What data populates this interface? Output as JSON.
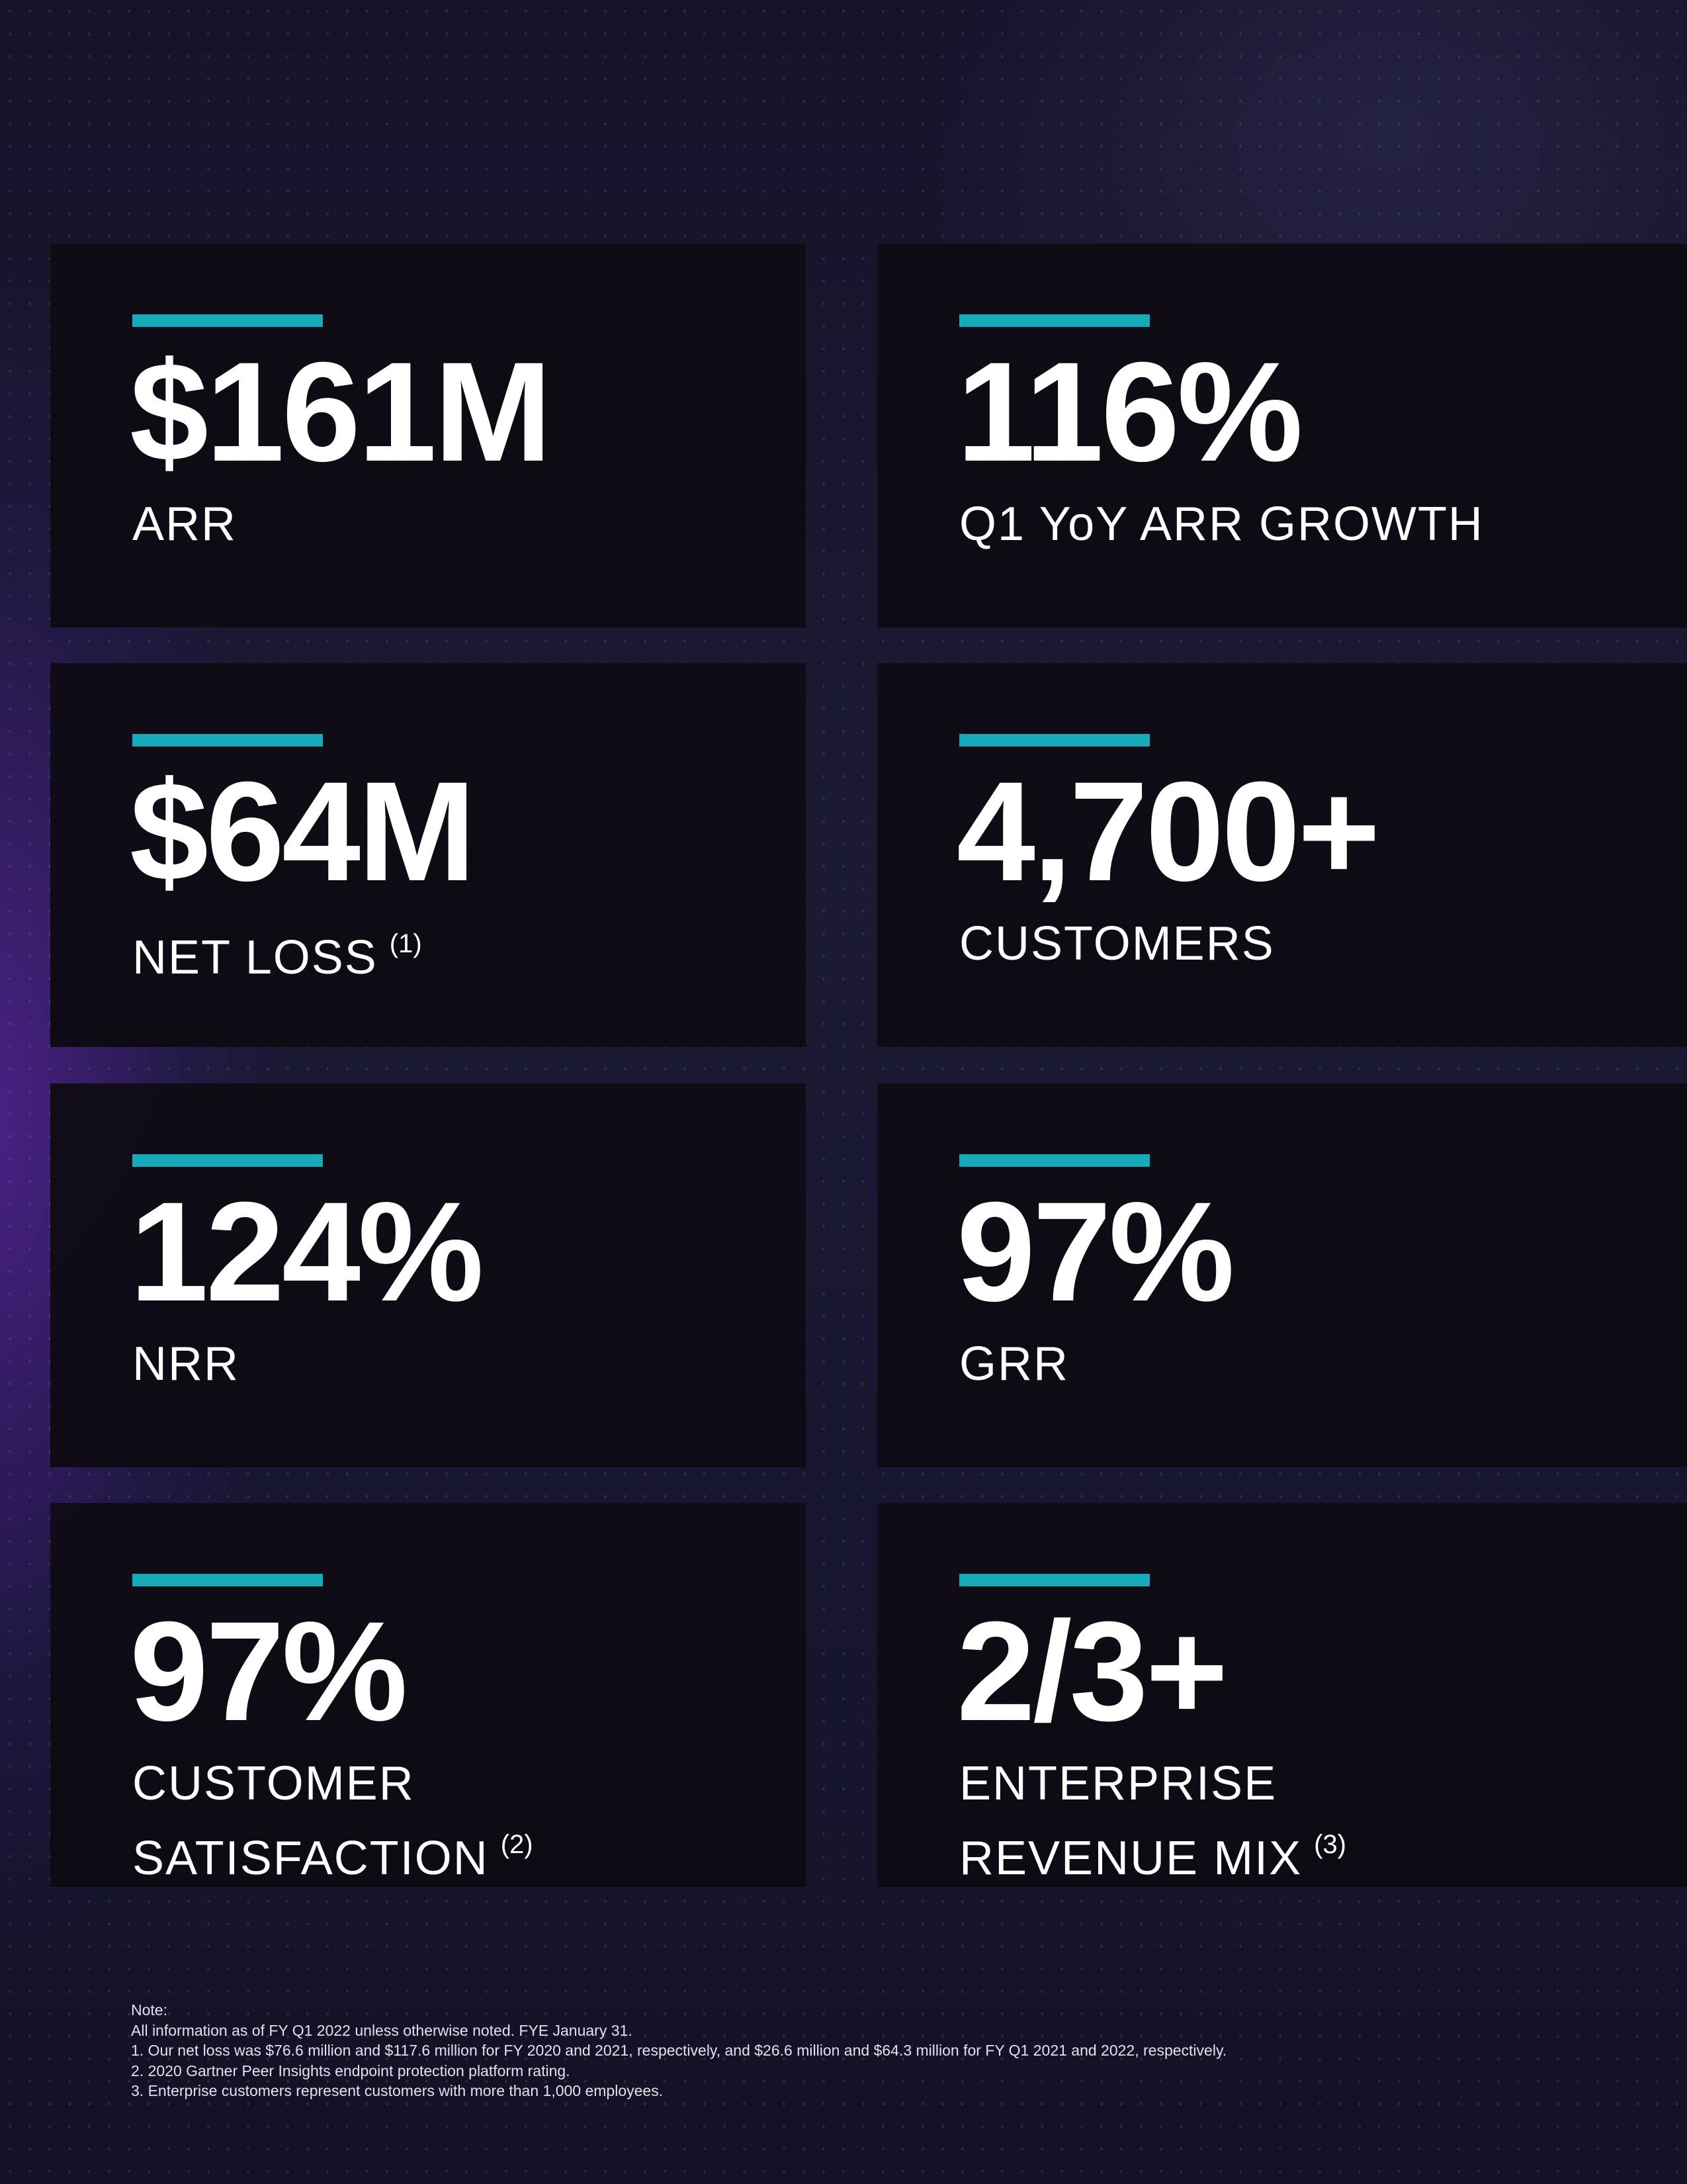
{
  "cards": [
    {
      "value": "$161M",
      "label_lines": [
        "ARR"
      ],
      "sup": ""
    },
    {
      "value": "116%",
      "label_lines": [
        "Q1 YoY ARR GROWTH"
      ],
      "sup": ""
    },
    {
      "value": "$64M",
      "label_lines": [
        "NET LOSS"
      ],
      "sup": "(1)"
    },
    {
      "value": "4,700+",
      "label_lines": [
        "CUSTOMERS"
      ],
      "sup": ""
    },
    {
      "value": "124%",
      "label_lines": [
        "NRR"
      ],
      "sup": ""
    },
    {
      "value": "97%",
      "label_lines": [
        "GRR"
      ],
      "sup": ""
    },
    {
      "value": "97%",
      "label_lines": [
        "CUSTOMER",
        "SATISFACTION"
      ],
      "sup": "(2)"
    },
    {
      "value": "2/3+",
      "label_lines": [
        "ENTERPRISE",
        "REVENUE MIX"
      ],
      "sup": "(3)"
    }
  ],
  "notes": {
    "heading": "Note:",
    "general": "All information as of FY Q1 2022 unless otherwise noted. FYE January 31.",
    "items": [
      "1.   Our net loss was $76.6 million and $117.6 million for FY 2020 and 2021, respectively, and $26.6 million and $64.3 million for FY Q1 2021 and 2022, respectively.",
      "2.  2020 Gartner Peer Insights endpoint protection platform rating.",
      "3.  Enterprise customers represent customers with more than 1,000 employees."
    ]
  },
  "colors": {
    "accent": "#17aabb",
    "card_bg": "#0f0b14",
    "page_bg": "#16152d",
    "glow": "#6e28c8"
  }
}
